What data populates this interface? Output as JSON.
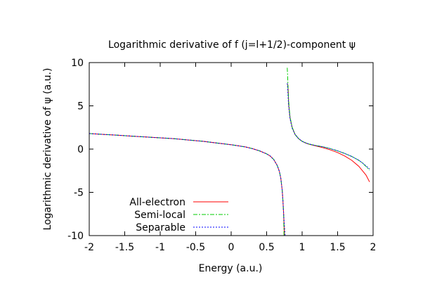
{
  "chart_data": {
    "type": "line",
    "title": "Logarithmic derivative of f (j=l+1/2)-component ψ",
    "xlabel": "Energy (a.u.)",
    "ylabel": "Logarithmic derivative of ψ (a.u.)",
    "xlim": [
      -2,
      2
    ],
    "ylim": [
      -10,
      10
    ],
    "x_ticks": [
      "-2",
      "-1.5",
      "-1",
      "-0.5",
      "0",
      "0.5",
      "1",
      "1.5",
      "2"
    ],
    "y_ticks": [
      "10",
      "5",
      "0",
      "-5",
      "-10"
    ],
    "grid": false,
    "legend_position": "bottom-left",
    "series": [
      {
        "name": "All-electron",
        "color": "#ff0000",
        "dash": "solid",
        "x": [
          -2.0,
          -1.8,
          -1.6,
          -1.4,
          -1.2,
          -1.0,
          -0.8,
          -0.6,
          -0.4,
          -0.2,
          0.0,
          0.2,
          0.3,
          0.4,
          0.5,
          0.55,
          0.6,
          0.65,
          0.68,
          0.7,
          0.72,
          0.73,
          0.74,
          0.75,
          0.79,
          0.8,
          0.805,
          0.81,
          0.83,
          0.86,
          0.9,
          0.95,
          1.0,
          1.05,
          1.1,
          1.2,
          1.3,
          1.4,
          1.5,
          1.6,
          1.7,
          1.8,
          1.85,
          1.9,
          1.95
        ],
        "values": [
          1.8,
          1.7,
          1.6,
          1.5,
          1.4,
          1.3,
          1.2,
          1.05,
          0.9,
          0.7,
          0.5,
          0.25,
          0.05,
          -0.2,
          -0.55,
          -0.8,
          -1.2,
          -1.9,
          -2.6,
          -3.4,
          -4.8,
          -6.0,
          -7.5,
          -10.0,
          7.6,
          7.3,
          6.5,
          5.2,
          3.6,
          2.5,
          1.7,
          1.2,
          0.9,
          0.7,
          0.55,
          0.35,
          0.15,
          -0.1,
          -0.4,
          -0.8,
          -1.3,
          -2.0,
          -2.5,
          -3.0,
          -3.8
        ]
      },
      {
        "name": "Semi-local",
        "color": "#00cc00",
        "dash": "dash",
        "x": [
          -2.0,
          -1.8,
          -1.6,
          -1.4,
          -1.2,
          -1.0,
          -0.8,
          -0.6,
          -0.4,
          -0.2,
          0.0,
          0.2,
          0.3,
          0.4,
          0.5,
          0.55,
          0.6,
          0.65,
          0.68,
          0.7,
          0.72,
          0.73,
          0.74,
          0.745,
          0.79,
          0.795,
          0.8,
          0.81,
          0.83,
          0.86,
          0.9,
          0.95,
          1.0,
          1.05,
          1.1,
          1.2,
          1.3,
          1.4,
          1.5,
          1.6,
          1.7,
          1.8,
          1.85,
          1.9,
          1.95
        ],
        "values": [
          1.8,
          1.7,
          1.6,
          1.5,
          1.4,
          1.3,
          1.2,
          1.05,
          0.9,
          0.7,
          0.5,
          0.25,
          0.05,
          -0.2,
          -0.55,
          -0.8,
          -1.2,
          -1.9,
          -2.6,
          -3.4,
          -4.8,
          -6.0,
          -7.5,
          -10.0,
          9.4,
          8.6,
          7.4,
          5.6,
          3.7,
          2.5,
          1.7,
          1.2,
          0.9,
          0.72,
          0.58,
          0.4,
          0.25,
          0.05,
          -0.2,
          -0.5,
          -0.85,
          -1.3,
          -1.6,
          -2.0,
          -2.45
        ]
      },
      {
        "name": "Separable",
        "color": "#0000ff",
        "dash": "dot",
        "x": [
          -2.0,
          -1.8,
          -1.6,
          -1.4,
          -1.2,
          -1.0,
          -0.8,
          -0.6,
          -0.4,
          -0.2,
          0.0,
          0.2,
          0.3,
          0.4,
          0.5,
          0.55,
          0.6,
          0.65,
          0.68,
          0.7,
          0.72,
          0.73,
          0.74,
          0.76,
          0.79,
          0.795,
          0.8,
          0.81,
          0.83,
          0.86,
          0.9,
          0.95,
          1.0,
          1.05,
          1.1,
          1.2,
          1.3,
          1.4,
          1.5,
          1.6,
          1.7,
          1.8,
          1.85,
          1.9,
          1.95
        ],
        "values": [
          1.8,
          1.7,
          1.6,
          1.5,
          1.4,
          1.3,
          1.2,
          1.05,
          0.9,
          0.7,
          0.5,
          0.25,
          0.05,
          -0.2,
          -0.55,
          -0.8,
          -1.2,
          -1.9,
          -2.6,
          -3.4,
          -4.8,
          -6.0,
          -7.5,
          -10.0,
          7.6,
          7.2,
          6.4,
          5.0,
          3.5,
          2.4,
          1.7,
          1.2,
          0.9,
          0.72,
          0.58,
          0.4,
          0.25,
          0.05,
          -0.2,
          -0.5,
          -0.85,
          -1.3,
          -1.6,
          -1.95,
          -2.3
        ]
      }
    ]
  }
}
